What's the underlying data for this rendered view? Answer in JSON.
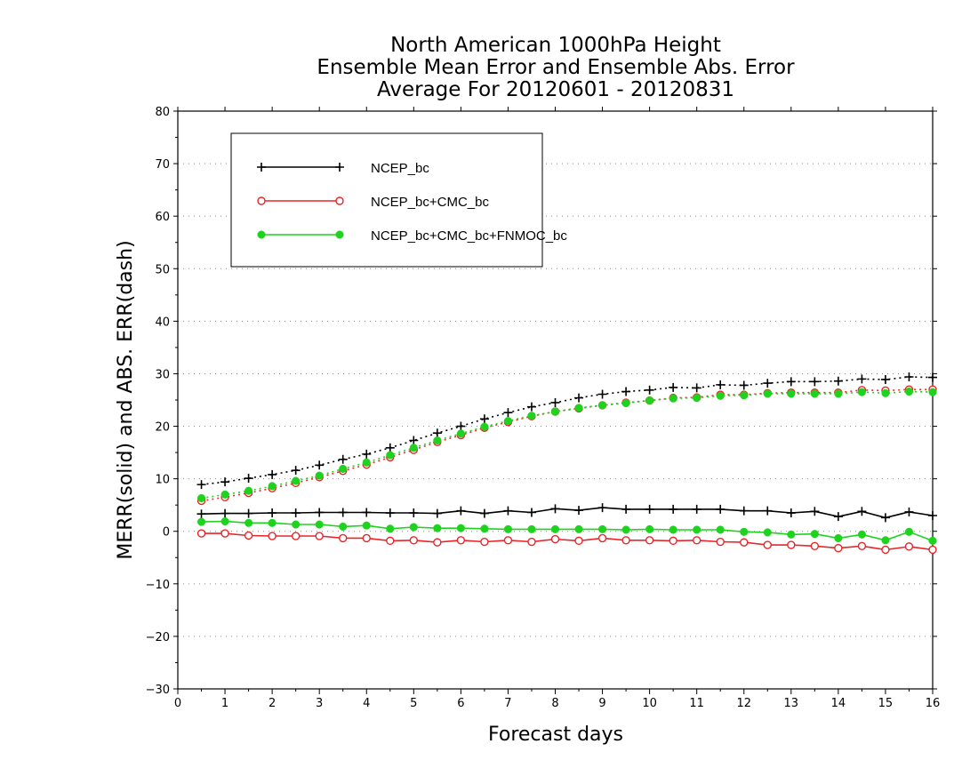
{
  "chart_data": {
    "type": "line",
    "title_lines": [
      "North American 1000hPa Height",
      "Ensemble Mean Error and Ensemble Abs. Error",
      "Average For 20120601 - 20120831"
    ],
    "xlabel": "Forecast days",
    "ylabel": "MERR(solid) and ABS. ERR(dash)",
    "xlim": [
      0,
      16
    ],
    "ylim": [
      -30,
      80
    ],
    "x_ticks": [
      0,
      1,
      2,
      3,
      4,
      5,
      6,
      7,
      8,
      9,
      10,
      11,
      12,
      13,
      14,
      15,
      16
    ],
    "y_ticks": [
      -30,
      -20,
      -10,
      0,
      10,
      20,
      30,
      40,
      50,
      60,
      70,
      80
    ],
    "x_tick_labels": [
      "0",
      "1",
      "2",
      "3",
      "4",
      "5",
      "6",
      "7",
      "8",
      "9",
      "10",
      "11",
      "12",
      "13",
      "14",
      "15",
      "16"
    ],
    "y_tick_labels": [
      "−30",
      "−20",
      "−10",
      "0",
      "10",
      "20",
      "30",
      "40",
      "50",
      "60",
      "70",
      "80"
    ],
    "grid": "horizontal dotted",
    "legend_position": "top-left",
    "x": [
      0.5,
      1,
      1.5,
      2,
      2.5,
      3,
      3.5,
      4,
      4.5,
      5,
      5.5,
      6,
      6.5,
      7,
      7.5,
      8,
      8.5,
      9,
      9.5,
      10,
      10.5,
      11,
      11.5,
      12,
      12.5,
      13,
      13.5,
      14,
      14.5,
      15,
      15.5,
      16
    ],
    "series": [
      {
        "name": "NCEP_bc",
        "color": "#000000",
        "marker": "plus",
        "mean_error": [
          3.3,
          3.4,
          3.4,
          3.5,
          3.5,
          3.6,
          3.6,
          3.6,
          3.5,
          3.5,
          3.4,
          3.9,
          3.4,
          3.9,
          3.6,
          4.3,
          4.0,
          4.5,
          4.2,
          4.2,
          4.2,
          4.2,
          4.2,
          3.9,
          3.9,
          3.5,
          3.8,
          2.8,
          3.8,
          2.6,
          3.7,
          3.0
        ],
        "abs_error": [
          8.9,
          9.4,
          10.1,
          10.8,
          11.6,
          12.6,
          13.7,
          14.7,
          15.9,
          17.3,
          18.7,
          20.0,
          21.4,
          22.6,
          23.7,
          24.5,
          25.4,
          26.1,
          26.6,
          26.9,
          27.4,
          27.3,
          27.9,
          27.8,
          28.2,
          28.5,
          28.5,
          28.6,
          29.0,
          28.9,
          29.4,
          29.3
        ]
      },
      {
        "name": "NCEP_bc+CMC_bc",
        "color": "#e8262a",
        "marker": "open-circle",
        "mean_error": [
          -0.4,
          -0.4,
          -0.8,
          -0.9,
          -0.9,
          -0.9,
          -1.3,
          -1.3,
          -1.8,
          -1.7,
          -2.1,
          -1.7,
          -2.0,
          -1.7,
          -2.0,
          -1.5,
          -1.8,
          -1.3,
          -1.7,
          -1.7,
          -1.8,
          -1.7,
          -2.0,
          -2.1,
          -2.6,
          -2.6,
          -2.8,
          -3.2,
          -2.8,
          -3.5,
          -2.9,
          -3.5
        ],
        "abs_error": [
          5.8,
          6.5,
          7.3,
          8.2,
          9.2,
          10.3,
          11.5,
          12.7,
          14.1,
          15.5,
          17.0,
          18.3,
          19.7,
          20.8,
          21.9,
          22.8,
          23.4,
          24.0,
          24.5,
          24.9,
          25.4,
          25.5,
          26.0,
          26.0,
          26.3,
          26.4,
          26.4,
          26.4,
          26.9,
          26.8,
          27.0,
          27.0
        ]
      },
      {
        "name": "NCEP_bc+CMC_bc+FNMOC_bc",
        "color": "#1ed31e",
        "marker": "filled-circle",
        "mean_error": [
          1.8,
          1.9,
          1.6,
          1.6,
          1.3,
          1.3,
          0.9,
          1.1,
          0.5,
          0.8,
          0.6,
          0.6,
          0.5,
          0.4,
          0.4,
          0.4,
          0.4,
          0.4,
          0.3,
          0.4,
          0.3,
          0.3,
          0.3,
          -0.1,
          -0.2,
          -0.6,
          -0.5,
          -1.3,
          -0.6,
          -1.7,
          -0.1,
          -1.8
        ],
        "abs_error": [
          6.3,
          7.0,
          7.7,
          8.6,
          9.6,
          10.6,
          11.9,
          13.1,
          14.5,
          15.9,
          17.3,
          18.6,
          19.9,
          21.0,
          22.0,
          22.8,
          23.5,
          24.0,
          24.4,
          24.9,
          25.3,
          25.4,
          25.8,
          25.9,
          26.2,
          26.2,
          26.2,
          26.2,
          26.5,
          26.3,
          26.6,
          26.5
        ]
      }
    ]
  }
}
